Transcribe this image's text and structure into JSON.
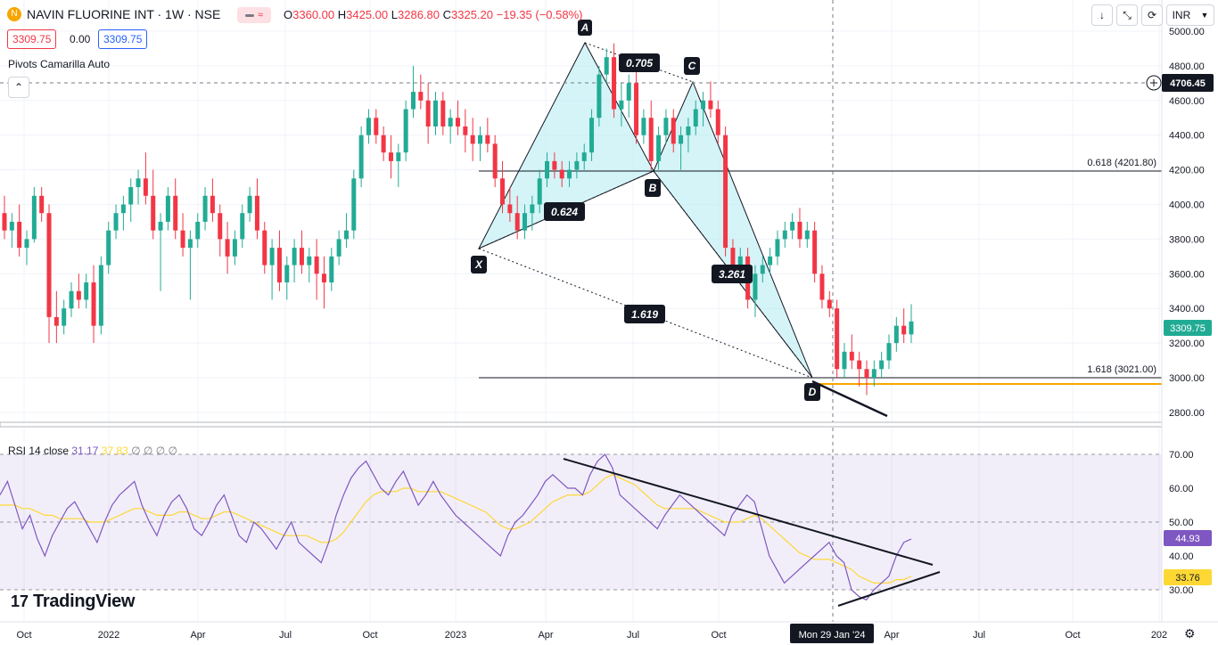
{
  "header": {
    "symbol": "NAVIN FLUORINE INT · 1W · NSE",
    "ohlc": {
      "o_label": "O",
      "o": "3360.00",
      "h_label": "H",
      "h": "3425.00",
      "l_label": "L",
      "l": "3286.80",
      "c_label": "C",
      "c": "3325.20",
      "change": "−19.35 (−0.58%)"
    },
    "bid": "3309.75",
    "spread": "0.00",
    "ask": "3309.75",
    "indicator": "Pivots Camarilla Auto",
    "currency": "INR"
  },
  "colors": {
    "up": "#22ab94",
    "down": "#f23645",
    "pattern_fill": "#b2ebf2",
    "rsi": "#7e57c2",
    "rsi_ma": "#fdd835",
    "fib_gold": "#f7a600"
  },
  "price_axis": {
    "ticks": [
      "5000.00",
      "4800.00",
      "4600.00",
      "4400.00",
      "4200.00",
      "4000.00",
      "3800.00",
      "3600.00",
      "3400.00",
      "3200.00",
      "3000.00",
      "2800.00"
    ],
    "crosshair_label": "4706.45",
    "last_price_label": "3309.75"
  },
  "time_axis": {
    "ticks": [
      "Oct",
      "2022",
      "Apr",
      "Jul",
      "Oct",
      "2023",
      "Apr",
      "Jul",
      "Oct",
      "Apr",
      "Jul",
      "Oct",
      "202"
    ],
    "cursor_label": "Mon 29 Jan '24"
  },
  "chart_data": {
    "type": "candlestick",
    "harmonic_points": {
      "X": {
        "label": "X",
        "price": 3750
      },
      "A": {
        "label": "A",
        "price": 4930
      },
      "B": {
        "label": "B",
        "price": 4200
      },
      "C": {
        "label": "C",
        "price": 4710
      },
      "D": {
        "label": "D",
        "price": 3010
      }
    },
    "ratios": [
      "0.705",
      "0.624",
      "3.261",
      "1.619"
    ],
    "fib_levels": [
      {
        "label": "0.618 (4201.80)",
        "price": 4201.8
      },
      {
        "label": "1.618 (3021.00)",
        "price": 3021.0
      }
    ],
    "support_line_price": 2985,
    "candles": [
      [
        3950,
        4050,
        3800,
        3850
      ],
      [
        3850,
        3950,
        3750,
        3900
      ],
      [
        3900,
        4000,
        3700,
        3750
      ],
      [
        3750,
        3850,
        3650,
        3800
      ],
      [
        3800,
        4100,
        3780,
        4050
      ],
      [
        4050,
        4100,
        3900,
        3950
      ],
      [
        3950,
        4000,
        3200,
        3350
      ],
      [
        3350,
        3500,
        3200,
        3300
      ],
      [
        3300,
        3450,
        3250,
        3400
      ],
      [
        3400,
        3550,
        3350,
        3500
      ],
      [
        3500,
        3600,
        3400,
        3450
      ],
      [
        3450,
        3600,
        3400,
        3550
      ],
      [
        3550,
        3650,
        3200,
        3300
      ],
      [
        3300,
        3700,
        3250,
        3650
      ],
      [
        3650,
        3900,
        3600,
        3850
      ],
      [
        3850,
        4000,
        3800,
        3950
      ],
      [
        3950,
        4050,
        3850,
        4000
      ],
      [
        4000,
        4150,
        3900,
        4100
      ],
      [
        4100,
        4200,
        4000,
        4150
      ],
      [
        4150,
        4300,
        4000,
        4050
      ],
      [
        4050,
        4200,
        3800,
        3850
      ],
      [
        3850,
        3950,
        3500,
        3900
      ],
      [
        3900,
        4100,
        3850,
        4050
      ],
      [
        4050,
        4150,
        3800,
        3850
      ],
      [
        3850,
        3950,
        3700,
        3750
      ],
      [
        3750,
        3850,
        3450,
        3800
      ],
      [
        3800,
        3950,
        3750,
        3900
      ],
      [
        3900,
        4100,
        3850,
        4050
      ],
      [
        4050,
        4150,
        3900,
        3950
      ],
      [
        3950,
        4000,
        3700,
        3800
      ],
      [
        3800,
        3900,
        3600,
        3700
      ],
      [
        3700,
        3850,
        3650,
        3800
      ],
      [
        3800,
        4000,
        3750,
        3950
      ],
      [
        3950,
        4100,
        3900,
        4050
      ],
      [
        4050,
        4150,
        3800,
        3850
      ],
      [
        3850,
        3900,
        3600,
        3650
      ],
      [
        3650,
        3800,
        3450,
        3750
      ],
      [
        3750,
        3850,
        3500,
        3550
      ],
      [
        3550,
        3700,
        3450,
        3650
      ],
      [
        3650,
        3800,
        3550,
        3750
      ],
      [
        3750,
        3850,
        3600,
        3650
      ],
      [
        3650,
        3750,
        3550,
        3700
      ],
      [
        3700,
        3800,
        3450,
        3600
      ],
      [
        3600,
        3700,
        3400,
        3550
      ],
      [
        3550,
        3750,
        3500,
        3700
      ],
      [
        3700,
        3850,
        3650,
        3800
      ],
      [
        3800,
        3950,
        3750,
        3850
      ],
      [
        3850,
        4200,
        3800,
        4150
      ],
      [
        4150,
        4450,
        4100,
        4400
      ],
      [
        4400,
        4550,
        4350,
        4500
      ],
      [
        4500,
        4550,
        4350,
        4400
      ],
      [
        4400,
        4450,
        4250,
        4300
      ],
      [
        4300,
        4400,
        4150,
        4250
      ],
      [
        4250,
        4350,
        4100,
        4300
      ],
      [
        4300,
        4600,
        4250,
        4550
      ],
      [
        4550,
        4800,
        4500,
        4650
      ],
      [
        4650,
        4750,
        4550,
        4600
      ],
      [
        4600,
        4700,
        4350,
        4450
      ],
      [
        4450,
        4650,
        4400,
        4600
      ],
      [
        4600,
        4650,
        4400,
        4450
      ],
      [
        4450,
        4550,
        4350,
        4500
      ],
      [
        4500,
        4600,
        4400,
        4450
      ],
      [
        4450,
        4550,
        4300,
        4400
      ],
      [
        4400,
        4500,
        4250,
        4350
      ],
      [
        4350,
        4450,
        4250,
        4400
      ],
      [
        4400,
        4500,
        4300,
        4350
      ],
      [
        4350,
        4400,
        4100,
        4150
      ],
      [
        4150,
        4250,
        3950,
        4000
      ],
      [
        4000,
        4100,
        3900,
        3950
      ],
      [
        3950,
        4050,
        3800,
        3850
      ],
      [
        3850,
        4000,
        3800,
        3950
      ],
      [
        3950,
        4050,
        3850,
        4000
      ],
      [
        4000,
        4200,
        3950,
        4150
      ],
      [
        4150,
        4300,
        4100,
        4250
      ],
      [
        4250,
        4300,
        4150,
        4200
      ],
      [
        4200,
        4250,
        4100,
        4150
      ],
      [
        4150,
        4250,
        4100,
        4200
      ],
      [
        4200,
        4300,
        4150,
        4250
      ],
      [
        4250,
        4350,
        4200,
        4300
      ],
      [
        4300,
        4550,
        4250,
        4500
      ],
      [
        4500,
        4800,
        4450,
        4750
      ],
      [
        4750,
        4900,
        4700,
        4850
      ],
      [
        4850,
        4930,
        4500,
        4550
      ],
      [
        4550,
        4700,
        4450,
        4600
      ],
      [
        4600,
        4750,
        4500,
        4700
      ],
      [
        4700,
        4800,
        4350,
        4400
      ],
      [
        4400,
        4550,
        4350,
        4500
      ],
      [
        4500,
        4600,
        4200,
        4250
      ],
      [
        4250,
        4450,
        4200,
        4400
      ],
      [
        4400,
        4550,
        4350,
        4500
      ],
      [
        4500,
        4550,
        4300,
        4350
      ],
      [
        4350,
        4450,
        4200,
        4400
      ],
      [
        4400,
        4500,
        4300,
        4450
      ],
      [
        4450,
        4600,
        4400,
        4550
      ],
      [
        4550,
        4650,
        4450,
        4600
      ],
      [
        4600,
        4710,
        4500,
        4550
      ],
      [
        4550,
        4600,
        4350,
        4400
      ],
      [
        4400,
        4450,
        3700,
        3750
      ],
      [
        3750,
        3800,
        3600,
        3650
      ],
      [
        3650,
        3750,
        3550,
        3700
      ],
      [
        3700,
        3750,
        3400,
        3450
      ],
      [
        3450,
        3650,
        3350,
        3600
      ],
      [
        3600,
        3700,
        3550,
        3650
      ],
      [
        3650,
        3750,
        3600,
        3700
      ],
      [
        3700,
        3850,
        3650,
        3800
      ],
      [
        3800,
        3900,
        3750,
        3850
      ],
      [
        3850,
        3950,
        3800,
        3900
      ],
      [
        3900,
        3980,
        3750,
        3800
      ],
      [
        3800,
        3900,
        3750,
        3850
      ],
      [
        3850,
        3900,
        3550,
        3600
      ],
      [
        3600,
        3650,
        3400,
        3450
      ],
      [
        3450,
        3500,
        3350,
        3400
      ],
      [
        3400,
        3450,
        3000,
        3050
      ],
      [
        3050,
        3200,
        3000,
        3150
      ],
      [
        3150,
        3250,
        3050,
        3100
      ],
      [
        3100,
        3150,
        2950,
        3050
      ],
      [
        3050,
        3100,
        2900,
        3000
      ],
      [
        3000,
        3100,
        2950,
        3050
      ],
      [
        3050,
        3150,
        3000,
        3100
      ],
      [
        3100,
        3250,
        3050,
        3200
      ],
      [
        3200,
        3350,
        3150,
        3300
      ],
      [
        3300,
        3400,
        3200,
        3250
      ],
      [
        3250,
        3425,
        3200,
        3325
      ]
    ],
    "rsi": {
      "label": "RSI 14 close",
      "value_label": "31.17",
      "ma_label": "37.83",
      "extra_label": "∅ ∅ ∅ ∅",
      "ticks": [
        "70.00",
        "60.00",
        "50.00",
        "40.00",
        "30.00"
      ],
      "current_rsi": "44.93",
      "current_ma": "33.76",
      "values": [
        58,
        62,
        55,
        48,
        52,
        45,
        40,
        46,
        50,
        54,
        56,
        52,
        48,
        44,
        50,
        55,
        58,
        60,
        62,
        55,
        50,
        46,
        52,
        56,
        58,
        54,
        48,
        46,
        50,
        55,
        58,
        52,
        46,
        44,
        50,
        48,
        45,
        42,
        46,
        50,
        44,
        42,
        40,
        38,
        44,
        52,
        58,
        63,
        66,
        68,
        64,
        60,
        58,
        62,
        65,
        60,
        55,
        58,
        62,
        58,
        55,
        52,
        50,
        48,
        46,
        44,
        42,
        40,
        46,
        50,
        52,
        55,
        58,
        62,
        64,
        62,
        60,
        60,
        58,
        64,
        68,
        70,
        66,
        58,
        56,
        54,
        52,
        50,
        48,
        52,
        55,
        58,
        56,
        54,
        52,
        50,
        48,
        46,
        52,
        55,
        58,
        56,
        48,
        40,
        36,
        32,
        34,
        36,
        38,
        40,
        42,
        44,
        40,
        38,
        30,
        28,
        27,
        30,
        32,
        34,
        40,
        44,
        45
      ],
      "ma": [
        55,
        55,
        55,
        54,
        54,
        53,
        52,
        52,
        51,
        51,
        51,
        51,
        50,
        50,
        50,
        51,
        52,
        53,
        54,
        54,
        53,
        52,
        52,
        52,
        53,
        53,
        52,
        51,
        51,
        52,
        53,
        53,
        52,
        51,
        50,
        49,
        48,
        47,
        46,
        46,
        46,
        46,
        45,
        44,
        44,
        45,
        47,
        50,
        53,
        56,
        58,
        59,
        59,
        59,
        60,
        60,
        59,
        59,
        59,
        59,
        58,
        57,
        56,
        55,
        54,
        53,
        51,
        49,
        48,
        48,
        49,
        50,
        52,
        54,
        56,
        57,
        58,
        58,
        58,
        59,
        61,
        63,
        64,
        63,
        62,
        61,
        59,
        57,
        55,
        54,
        54,
        54,
        54,
        54,
        53,
        52,
        51,
        50,
        50,
        50,
        51,
        52,
        51,
        49,
        47,
        45,
        43,
        41,
        40,
        39,
        39,
        39,
        38,
        37,
        36,
        34,
        33,
        32,
        32,
        32,
        33,
        33,
        34
      ]
    }
  }
}
